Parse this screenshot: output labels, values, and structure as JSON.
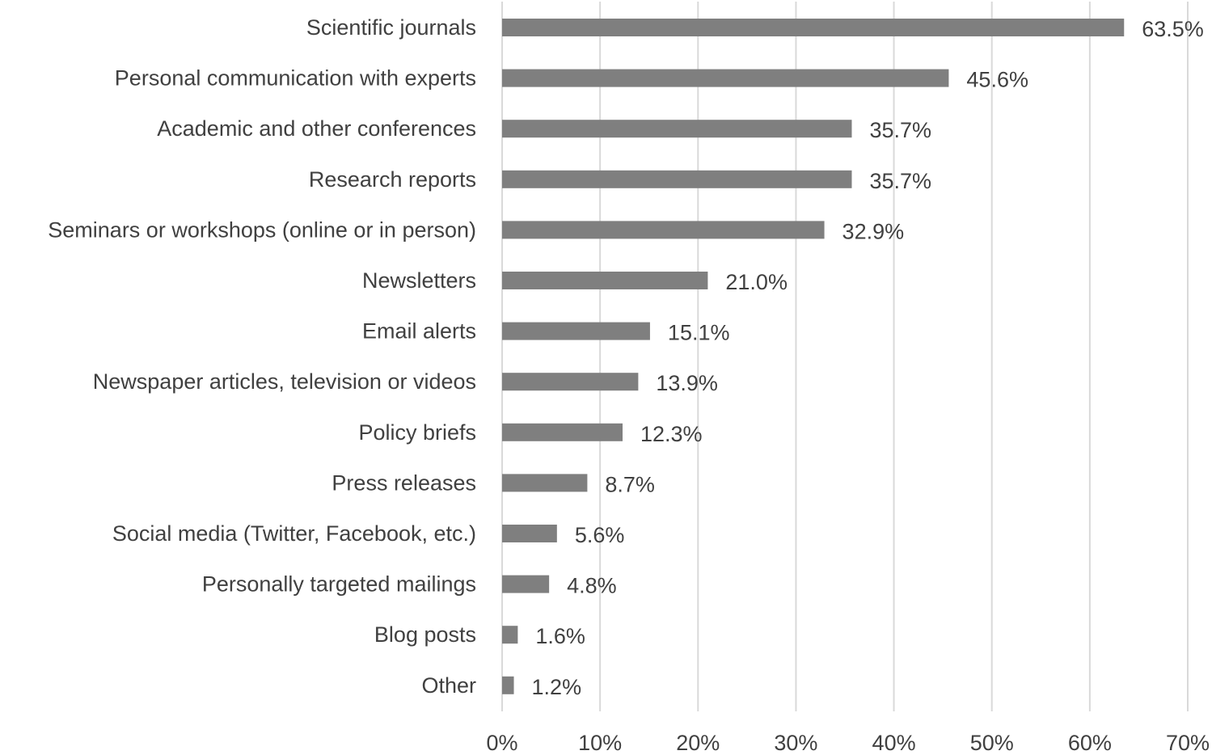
{
  "chart_data": {
    "type": "bar",
    "orientation": "horizontal",
    "title": "",
    "xlabel": "",
    "ylabel": "",
    "categories": [
      "Scientific journals",
      "Personal communication with experts",
      "Academic and other conferences",
      "Research reports",
      "Seminars or workshops (online or in person)",
      "Newsletters",
      "Email alerts",
      "Newspaper articles, television or videos",
      "Policy briefs",
      "Press releases",
      "Social media (Twitter, Facebook, etc.)",
      "Personally targeted mailings",
      "Blog posts",
      "Other"
    ],
    "values": [
      63.5,
      45.6,
      35.7,
      35.7,
      32.9,
      21.0,
      15.1,
      13.9,
      12.3,
      8.7,
      5.6,
      4.8,
      1.6,
      1.2
    ],
    "value_labels": [
      "63.5%",
      "45.6%",
      "35.7%",
      "35.7%",
      "32.9%",
      "21.0%",
      "15.1%",
      "13.9%",
      "12.3%",
      "8.7%",
      "5.6%",
      "4.8%",
      "1.6%",
      "1.2%"
    ],
    "xlim": [
      0,
      70
    ],
    "x_ticks": [
      0,
      10,
      20,
      30,
      40,
      50,
      60,
      70
    ],
    "x_tick_labels": [
      "0%",
      "10%",
      "20%",
      "30%",
      "40%",
      "50%",
      "60%",
      "70%"
    ],
    "grid": "vertical",
    "legend": "none",
    "bar_color": "#7f7f7f",
    "grid_color": "#d9d9d9",
    "text_color": "#404040"
  }
}
